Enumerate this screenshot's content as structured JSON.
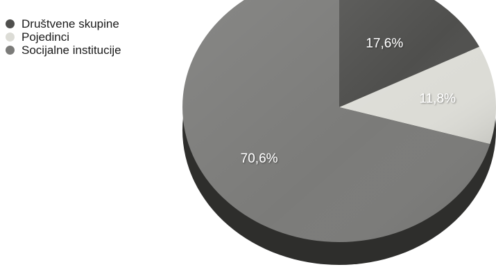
{
  "chart_data": {
    "type": "pie",
    "categories": [
      "Društvene skupine",
      "Pojedinci",
      "Socijalne institucije"
    ],
    "values": [
      17.6,
      11.8,
      70.6
    ],
    "labels": [
      "17,6%",
      "11,8%",
      "70,6%"
    ],
    "colors": [
      "#4f4f4d",
      "#dcdcd6",
      "#7b7b79"
    ],
    "title": "",
    "legend_position": "top-left"
  }
}
